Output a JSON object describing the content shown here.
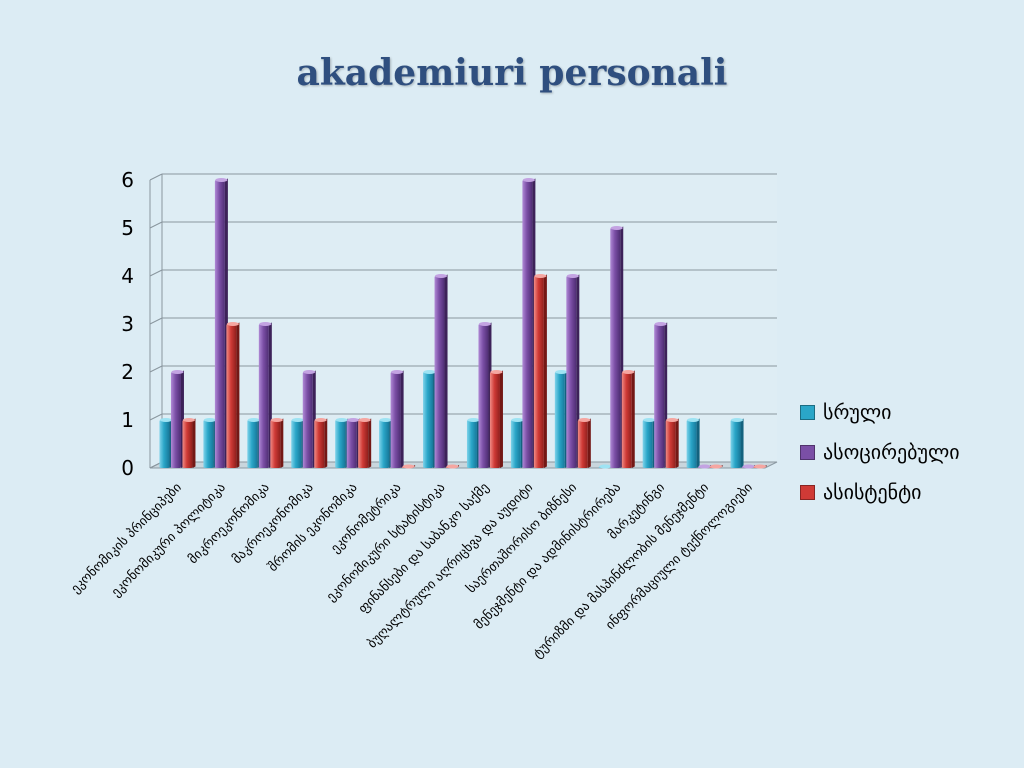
{
  "chart_data": {
    "type": "bar",
    "title": "akademiuri personali",
    "categories": [
      "ეკონომიკის პრინციპები",
      "ეკონომიკური პოლიტიკა",
      "მიკროეკონომიკა",
      "მაკროეკონომიკა",
      "შრომის ეკონომიკა",
      "ეკონომეტრიკა",
      "ეკონომიკური სტატისტიკა",
      "ფინანსები და საბანკო საქმე",
      "ბუღალტრული აღრიცხვა და აუდიტი",
      "საერთაშორისო ბიზნესი",
      "მენეჯმენტი და ადმინისტრირება",
      "მარკეტინგი",
      "ტურიზმი და მასპინძლობის მენეჯმენტი",
      "ინფორმაციული ტექნოლოგიები"
    ],
    "series": [
      {
        "name": "სრული",
        "color": "#2aa6c8",
        "values": [
          1,
          1,
          1,
          1,
          1,
          1,
          2,
          1,
          1,
          2,
          0,
          1,
          1,
          1
        ]
      },
      {
        "name": "ასოცირებული",
        "color": "#7b4fa6",
        "values": [
          2,
          6,
          3,
          2,
          1,
          2,
          4,
          3,
          6,
          4,
          5,
          3,
          0,
          0
        ]
      },
      {
        "name": "ასისტენტი",
        "color": "#cf3a36",
        "values": [
          1,
          3,
          1,
          1,
          1,
          0,
          0,
          2,
          4,
          1,
          2,
          1,
          0,
          0
        ]
      }
    ],
    "yticks": [
      0,
      1,
      2,
      3,
      4,
      5,
      6
    ],
    "ylim": [
      0,
      6
    ],
    "grid": true,
    "legend_position": "right"
  }
}
